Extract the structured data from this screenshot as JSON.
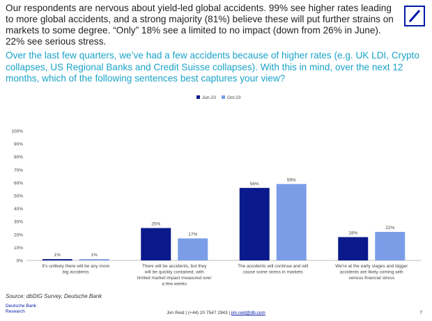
{
  "header": {
    "headline": "Our respondents are nervous about yield-led global accidents. 99% see higher rates leading to more global accidents, and a strong majority (81%) believe these will put further strains on markets to some degree. “Only” 18% see a limited to no impact (down from 26% in June). 22% see serious stress.",
    "question": "Over the last few quarters, we’ve had a few accidents because of higher rates (e.g. UK LDI, Crypto collapses, US Regional Banks and Credit Suisse collapses). With this in mind, over the next 12 months, which of the following sentences best captures your view?"
  },
  "chart_data": {
    "type": "bar",
    "categories": [
      "It's unlikely there will be any more big accidents",
      "There will be accidents, but they will be quickly contained, with limited market impact measured over a few weeks",
      "The accidents will continue and will cause some stress in markets",
      "We're at the early stages and bigger accidents are likely coming with serious financial stress"
    ],
    "series": [
      {
        "name": "Jun-23",
        "values": [
          1,
          25,
          56,
          18
        ],
        "labels": [
          "1%",
          "25%",
          "56%",
          "18%"
        ],
        "color": "#0a1a8c"
      },
      {
        "name": "Oct-23",
        "values": [
          1,
          17,
          59,
          22
        ],
        "labels": [
          "1%",
          "17%",
          "59%",
          "22%"
        ],
        "color": "#7b9de8"
      }
    ],
    "yticks": [
      "0%",
      "10%",
      "20%",
      "30%",
      "40%",
      "50%",
      "60%",
      "70%",
      "80%",
      "90%",
      "100%"
    ],
    "ylim": [
      0,
      100
    ],
    "legend": "top-left",
    "grid": false
  },
  "footer": {
    "source": "Source: dbDIG Survey, Deutsche Bank",
    "brand_line1": "Deutsche Bank",
    "brand_line2": "Research",
    "contact": "Jim Reid | (+44) 20 7547 2943 |",
    "email": "jim.reid@db.com",
    "page_number": "7"
  },
  "colors": {
    "question": "#1aa3c9",
    "brand": "#0018a8"
  }
}
